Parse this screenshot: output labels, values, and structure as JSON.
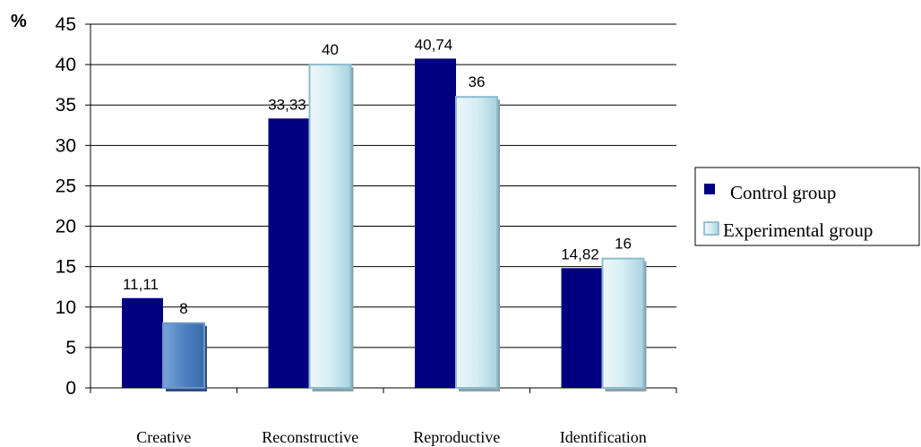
{
  "chart_data": {
    "type": "bar",
    "y_unit_label": "%",
    "categories": [
      "Creative",
      "Reconstructive",
      "Reproductive",
      "Identification"
    ],
    "series": [
      {
        "name": "Control group",
        "values": [
          11.11,
          33.33,
          40.74,
          14.82
        ],
        "labels": [
          "11,11",
          "33,33",
          "40,74",
          "14,82"
        ],
        "color": "#000080"
      },
      {
        "name": "Experimental group",
        "values": [
          8,
          40,
          36,
          16
        ],
        "labels": [
          "8",
          "40",
          "36",
          "16"
        ],
        "color": "#c8e6ee",
        "highlight_color": "#4a7fc0"
      }
    ],
    "ylim": [
      0,
      45
    ],
    "yticks": [
      0,
      5,
      10,
      15,
      20,
      25,
      30,
      35,
      40,
      45
    ],
    "grid": true,
    "legend_position": "right"
  }
}
